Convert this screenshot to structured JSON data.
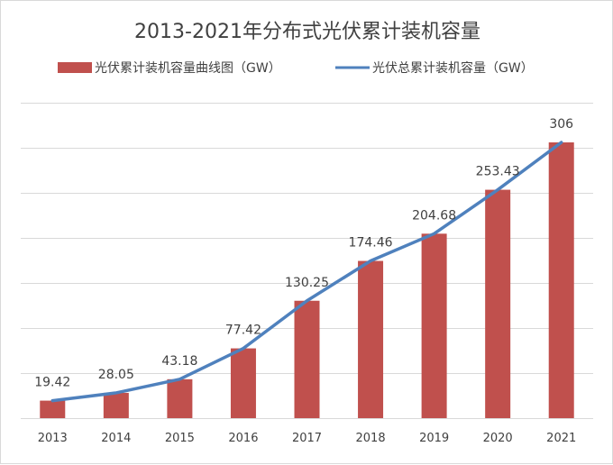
{
  "chart_data": {
    "type": "bar",
    "title": "2013-2021年分布式光伏累计装机容量",
    "categories": [
      "2013",
      "2014",
      "2015",
      "2016",
      "2017",
      "2018",
      "2019",
      "2020",
      "2021"
    ],
    "series": [
      {
        "name": "光伏累计装机容量曲线图（GW）",
        "type": "bar",
        "color": "#c0504d",
        "values": [
          19.42,
          28.05,
          43.18,
          77.42,
          130.25,
          174.46,
          204.68,
          253.43,
          306
        ]
      },
      {
        "name": "光伏总累计装机容量（GW）",
        "type": "line",
        "color": "#4f81bd",
        "values": [
          19.42,
          28.05,
          43.18,
          77.42,
          130.25,
          174.46,
          204.68,
          253.43,
          306
        ]
      }
    ],
    "data_labels": [
      "19.42",
      "28.05",
      "43.18",
      "77.42",
      "130.25",
      "174.46",
      "204.68",
      "253.43",
      "306"
    ],
    "ylim": [
      0,
      350
    ],
    "y_gridlines": [
      0,
      50,
      100,
      150,
      200,
      250,
      300,
      350
    ],
    "grid": true,
    "y_tick_labels_shown": false,
    "legend_position": "top",
    "gridline_color": "#d9d9d9"
  }
}
